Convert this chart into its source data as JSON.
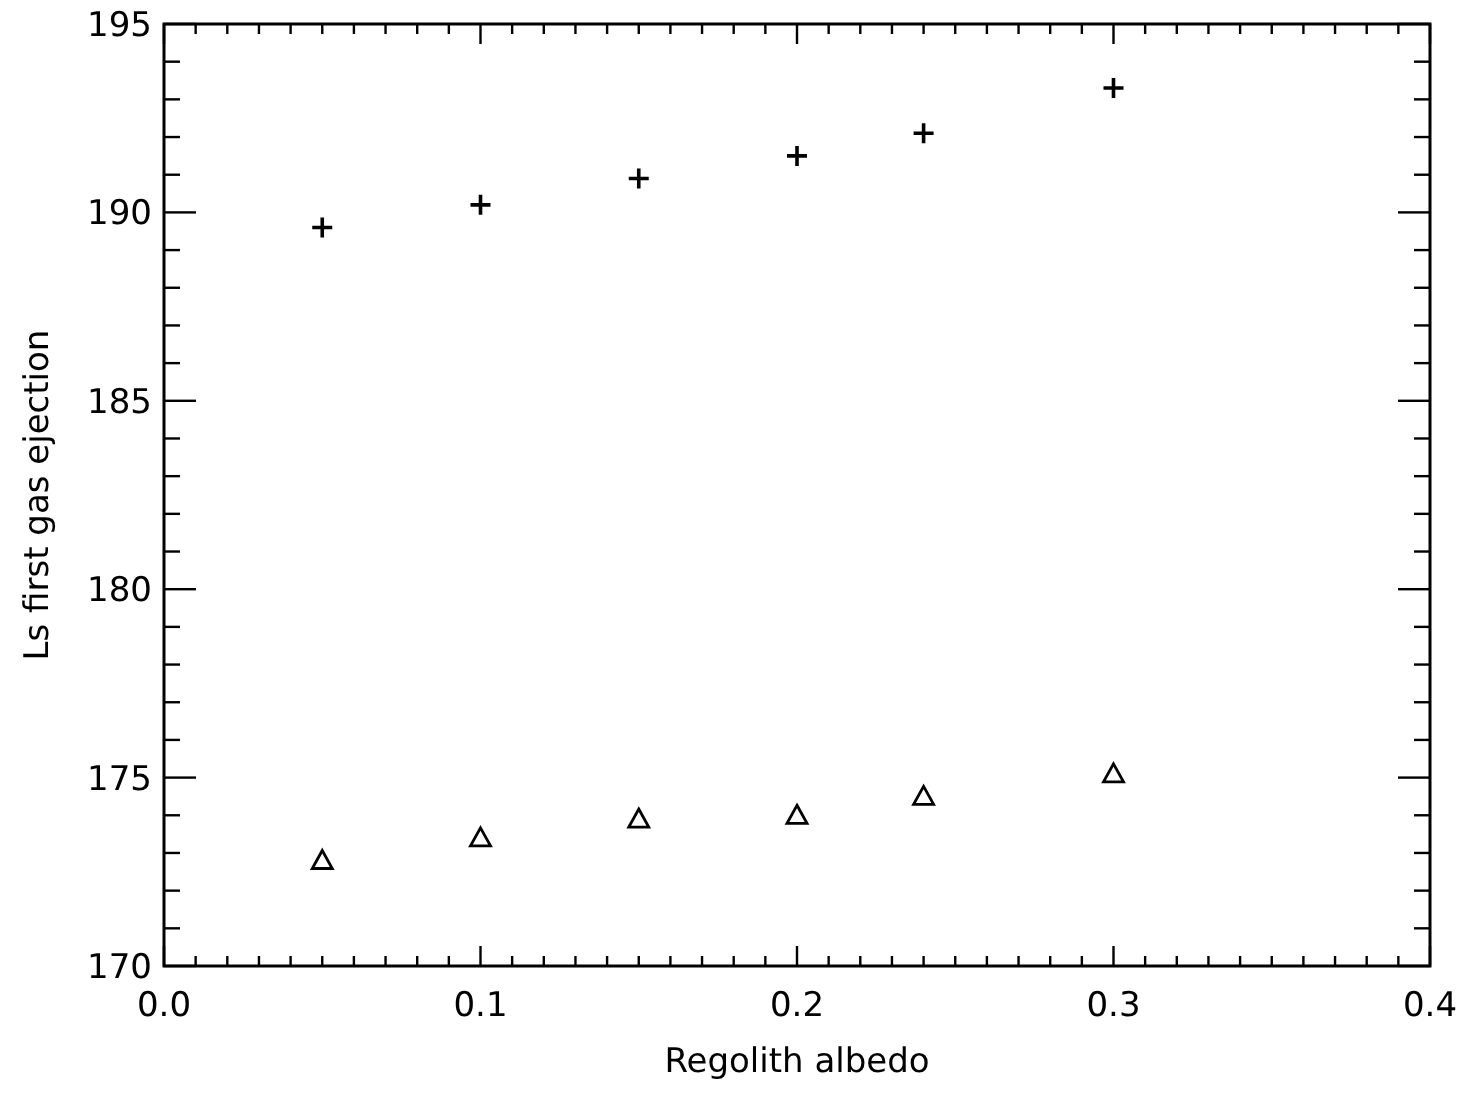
{
  "chart_data": {
    "type": "scatter",
    "xlabel": "Regolith albedo",
    "ylabel": "Ls first gas ejection",
    "x": [
      0.05,
      0.1,
      0.15,
      0.2,
      0.24,
      0.3
    ],
    "series": [
      {
        "color": "#000000",
        "marker": "cross",
        "values": [
          189.6,
          190.2,
          190.9,
          191.5,
          192.1,
          193.3
        ]
      },
      {
        "color": "#000000",
        "marker": "triangle",
        "values": [
          172.8,
          173.4,
          173.9,
          174.0,
          174.5,
          175.1
        ]
      }
    ],
    "xlim": [
      0,
      0.4
    ],
    "ylim": [
      170,
      195
    ],
    "xticks": [
      {
        "value": 0,
        "label": "0.0"
      },
      {
        "value": 0.01,
        "label": null
      },
      {
        "value": 0.02,
        "label": null
      },
      {
        "value": 0.03,
        "label": null
      },
      {
        "value": 0.04,
        "label": null
      },
      {
        "value": 0.05,
        "label": null
      },
      {
        "value": 0.06,
        "label": null
      },
      {
        "value": 0.07,
        "label": null
      },
      {
        "value": 0.08,
        "label": null
      },
      {
        "value": 0.09,
        "label": null
      },
      0.1,
      {
        "value": 0.11,
        "label": null
      },
      {
        "value": 0.12,
        "label": null
      },
      {
        "value": 0.13,
        "label": null
      },
      {
        "value": 0.14,
        "label": null
      },
      {
        "value": 0.15,
        "label": null
      },
      {
        "value": 0.16,
        "label": null
      },
      {
        "value": 0.17,
        "label": null
      },
      {
        "value": 0.18,
        "label": null
      },
      {
        "value": 0.19,
        "label": null
      },
      0.2,
      {
        "value": 0.21,
        "label": null
      },
      {
        "value": 0.22,
        "label": null
      },
      {
        "value": 0.23,
        "label": null
      },
      {
        "value": 0.24,
        "label": null
      },
      {
        "value": 0.25,
        "label": null
      },
      {
        "value": 0.26,
        "label": null
      },
      {
        "value": 0.27,
        "label": null
      },
      {
        "value": 0.28,
        "label": null
      },
      {
        "value": 0.29,
        "label": null
      },
      0.3,
      {
        "value": 0.31,
        "label": null
      },
      {
        "value": 0.32,
        "label": null
      },
      {
        "value": 0.33,
        "label": null
      },
      {
        "value": 0.34,
        "label": null
      },
      {
        "value": 0.35,
        "label": null
      },
      {
        "value": 0.36,
        "label": null
      },
      {
        "value": 0.37,
        "label": null
      },
      {
        "value": 0.38,
        "label": null
      },
      {
        "value": 0.39,
        "label": null
      },
      0.4
    ],
    "yticks": [
      170,
      {
        "value": 171,
        "label": null
      },
      {
        "value": 172,
        "label": null
      },
      {
        "value": 173,
        "label": null
      },
      {
        "value": 174,
        "label": null
      },
      175,
      {
        "value": 176,
        "label": null
      },
      {
        "value": 177,
        "label": null
      },
      {
        "value": 178,
        "label": null
      },
      {
        "value": 179,
        "label": null
      },
      180,
      {
        "value": 181,
        "label": null
      },
      {
        "value": 182,
        "label": null
      },
      {
        "value": 183,
        "label": null
      },
      {
        "value": 184,
        "label": null
      },
      185,
      {
        "value": 186,
        "label": null
      },
      {
        "value": 187,
        "label": null
      },
      {
        "value": 188,
        "label": null
      },
      {
        "value": 189,
        "label": null
      },
      190,
      {
        "value": 191,
        "label": null
      },
      {
        "value": 192,
        "label": null
      },
      {
        "value": 193,
        "label": null
      },
      {
        "value": 194,
        "label": null
      },
      195
    ],
    "grid": false
  }
}
